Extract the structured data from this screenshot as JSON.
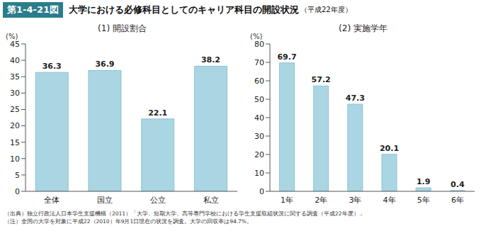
{
  "figure_label": "第1-4-21図",
  "title": "大学における必修科目としてのキャリア科目の開設状況",
  "title_note": "（平成22年度）",
  "notes": [
    "（出典）独立行政法人日本学生支援機構（2011）「大学、短期大学、高等専門学校における学生支援取組状況に関する調査（平成22年度）」",
    "（注）全国の大学を対象に平成22（2010）年9月1日現在の状況を調査。大学の回収率は94.7%。"
  ],
  "chart_data": [
    {
      "type": "bar",
      "title": "(1) 開設割合",
      "y_label": "(%)",
      "categories": [
        "全体",
        "国立",
        "公立",
        "私立"
      ],
      "values": [
        36.3,
        36.9,
        22.1,
        38.2
      ],
      "color": "#a9d6e2",
      "ylim": [
        0,
        45
      ],
      "yticks": [
        0,
        5,
        10,
        15,
        20,
        25,
        30,
        35,
        40,
        45
      ],
      "grid": false,
      "data_labels": true
    },
    {
      "type": "bar",
      "title": "(2) 実施学年",
      "y_label": "(%)",
      "categories": [
        "1年",
        "2年",
        "3年",
        "4年",
        "5年",
        "6年"
      ],
      "values": [
        69.7,
        57.2,
        47.3,
        20.1,
        1.9,
        0.4
      ],
      "color": "#a9d6e2",
      "ylim": [
        0,
        80
      ],
      "yticks": [
        0,
        10,
        20,
        30,
        40,
        50,
        60,
        70,
        80
      ],
      "grid": false,
      "data_labels": true
    }
  ]
}
